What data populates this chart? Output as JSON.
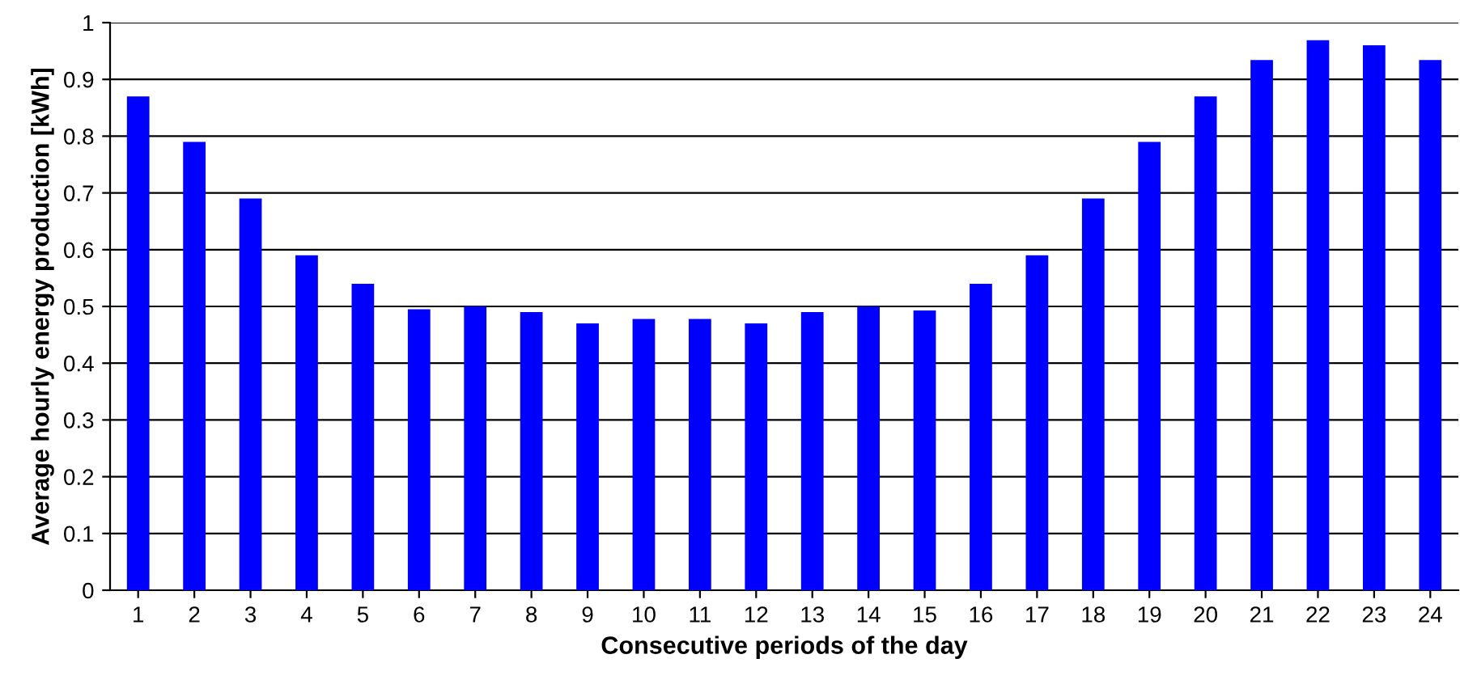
{
  "chart_data": {
    "type": "bar",
    "xlabel": "Consecutive periods of the day",
    "ylabel": "Average hourly energy production [kWh]",
    "categories": [
      "1",
      "2",
      "3",
      "4",
      "5",
      "6",
      "7",
      "8",
      "9",
      "10",
      "11",
      "12",
      "13",
      "14",
      "15",
      "16",
      "17",
      "18",
      "19",
      "20",
      "21",
      "22",
      "23",
      "24"
    ],
    "values": [
      0.87,
      0.79,
      0.69,
      0.59,
      0.54,
      0.495,
      0.5,
      0.49,
      0.47,
      0.478,
      0.478,
      0.47,
      0.49,
      0.5,
      0.493,
      0.54,
      0.59,
      0.69,
      0.79,
      0.87,
      0.934,
      0.969,
      0.96,
      0.934
    ],
    "color": "#0000ff",
    "ylim": [
      0,
      1
    ],
    "yticks": [
      0,
      {
        "value": 0.1,
        "label": "0.1"
      },
      {
        "value": 0.2,
        "label": "0.2"
      },
      {
        "value": 0.3,
        "label": "0.3"
      },
      {
        "value": 0.4,
        "label": "0.4"
      },
      {
        "value": 0.5,
        "label": "0.5"
      },
      {
        "value": 0.6,
        "label": "0.6"
      },
      {
        "value": 0.7,
        "label": "0.7"
      },
      {
        "value": 0.8,
        "label": "0.8"
      },
      {
        "value": 0.9,
        "label": "0.9"
      },
      1
    ],
    "grid": "y",
    "legend": false
  }
}
